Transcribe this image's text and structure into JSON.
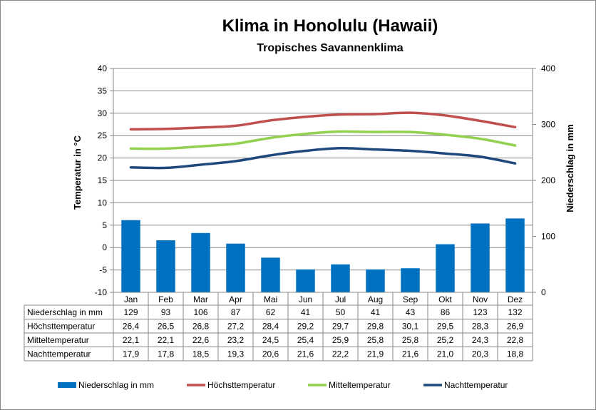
{
  "chart_data": {
    "type": "bar",
    "title": "Klima in Honolulu (Hawaii)",
    "subtitle": "Tropisches Savannenklima",
    "categories": [
      "Jan",
      "Feb",
      "Mar",
      "Apr",
      "Mai",
      "Jun",
      "Jul",
      "Aug",
      "Sep",
      "Okt",
      "Nov",
      "Dez"
    ],
    "y_left": {
      "label": "Temperatur in °C",
      "range": [
        -10,
        40
      ],
      "ticks": [
        -10,
        -5,
        0,
        5,
        10,
        15,
        20,
        25,
        30,
        35,
        40
      ]
    },
    "y_right": {
      "label": "Niederschlag in mm",
      "range": [
        0,
        400
      ],
      "ticks": [
        0,
        100,
        200,
        300,
        400
      ]
    },
    "grid": true,
    "legend_position": "bottom",
    "series": [
      {
        "name": "Niederschlag in mm",
        "type": "bar",
        "axis": "right",
        "color": "#0070C0",
        "values": [
          129,
          93,
          106,
          87,
          62,
          41,
          50,
          41,
          43,
          86,
          123,
          132
        ],
        "display": [
          "129",
          "93",
          "106",
          "87",
          "62",
          "41",
          "50",
          "41",
          "43",
          "86",
          "123",
          "132"
        ]
      },
      {
        "name": "Höchsttemperatur",
        "type": "line",
        "axis": "left",
        "color": "#C0504D",
        "values": [
          26.4,
          26.5,
          26.8,
          27.2,
          28.4,
          29.2,
          29.7,
          29.8,
          30.1,
          29.5,
          28.3,
          26.9
        ],
        "display": [
          "26,4",
          "26,5",
          "26,8",
          "27,2",
          "28,4",
          "29,2",
          "29,7",
          "29,8",
          "30,1",
          "29,5",
          "28,3",
          "26,9"
        ]
      },
      {
        "name": "Mitteltemperatur",
        "type": "line",
        "axis": "left",
        "color": "#92D050",
        "values": [
          22.1,
          22.1,
          22.6,
          23.2,
          24.5,
          25.4,
          25.9,
          25.8,
          25.8,
          25.2,
          24.3,
          22.8
        ],
        "display": [
          "22,1",
          "22,1",
          "22,6",
          "23,2",
          "24,5",
          "25,4",
          "25,9",
          "25,8",
          "25,8",
          "25,2",
          "24,3",
          "22,8"
        ]
      },
      {
        "name": "Nachttemperatur",
        "type": "line",
        "axis": "left",
        "color": "#1F497D",
        "values": [
          17.9,
          17.8,
          18.5,
          19.3,
          20.6,
          21.6,
          22.2,
          21.9,
          21.6,
          21.0,
          20.3,
          18.8
        ],
        "display": [
          "17,9",
          "17,8",
          "18,5",
          "19,3",
          "20,6",
          "21,6",
          "22,2",
          "21,9",
          "21,6",
          "21,0",
          "20,3",
          "18,8"
        ]
      }
    ]
  }
}
